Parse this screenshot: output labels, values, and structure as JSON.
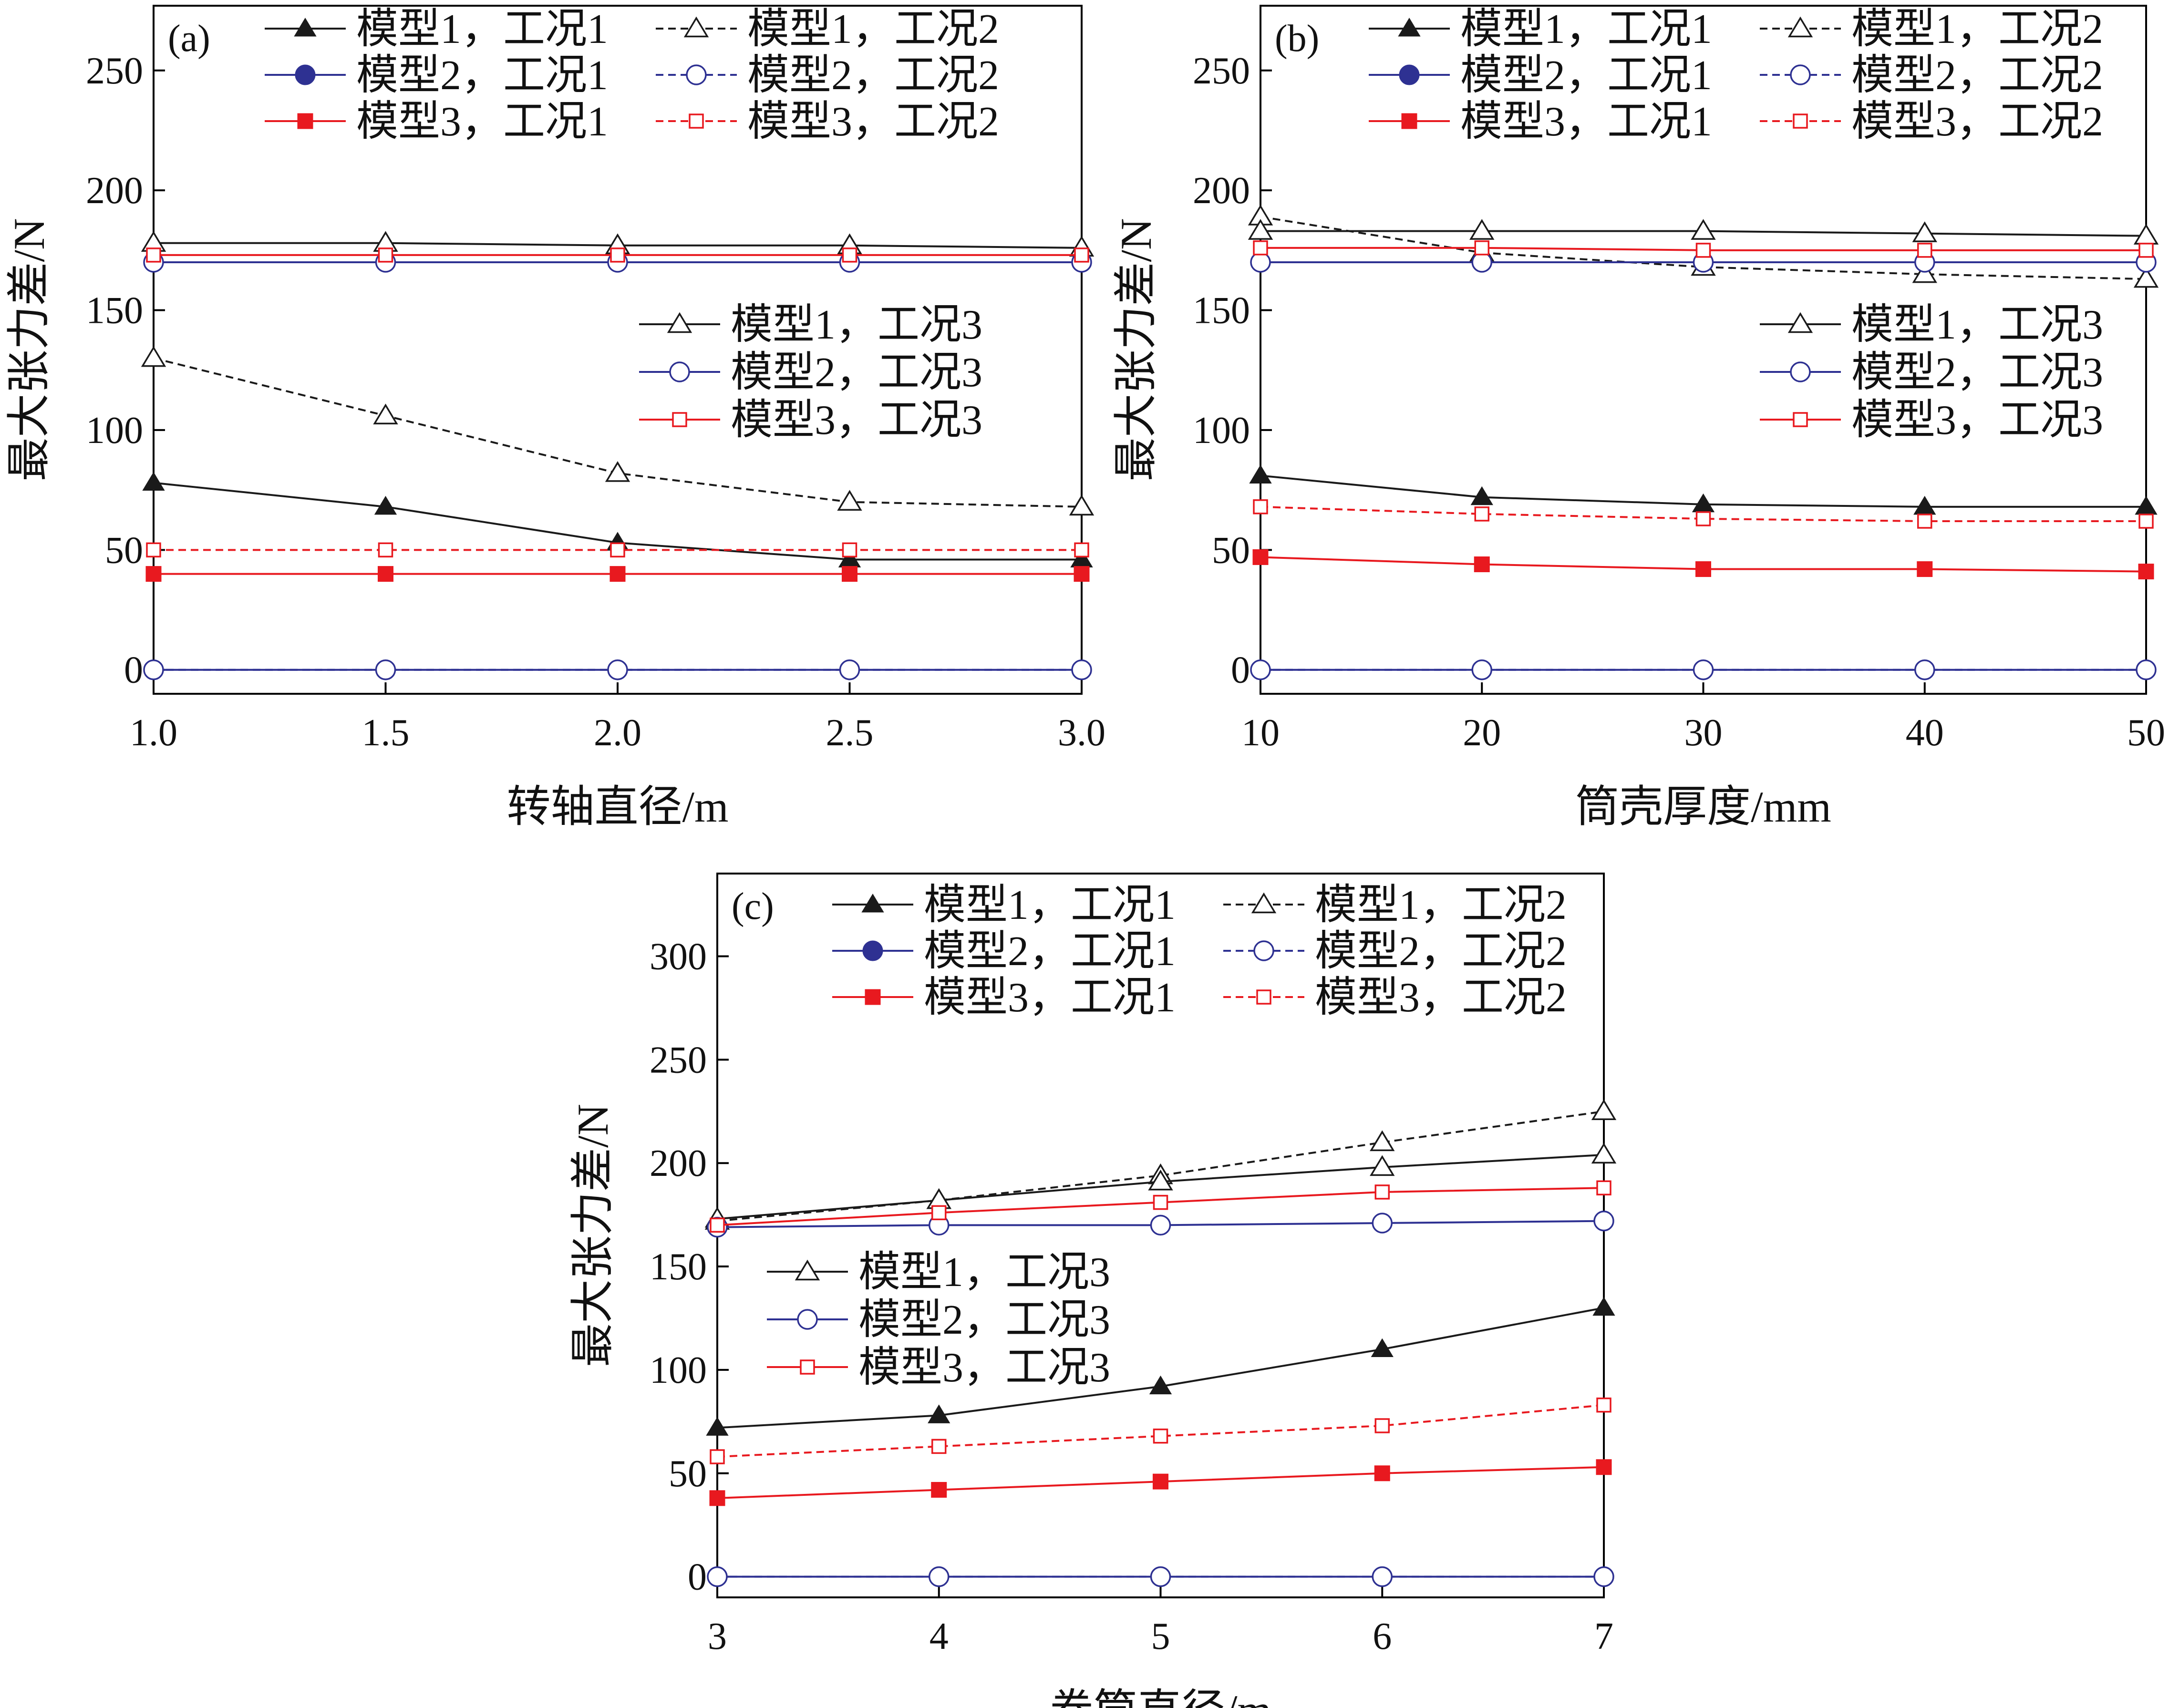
{
  "figure": {
    "panel_labels": [
      "(a)",
      "(b)",
      "(c)"
    ]
  },
  "colors": {
    "model1": "#1a1a1a",
    "model2": "#2e3192",
    "model3": "#e8191f",
    "frame": "#000000"
  },
  "legend_text": {
    "m1c1": "模型1，工况1",
    "m2c1": "模型2，工况1",
    "m3c1": "模型3，工况1",
    "m1c2": "模型1，工况2",
    "m2c2": "模型2，工况2",
    "m3c2": "模型3，工况2",
    "m1c3": "模型1，工况3",
    "m2c3": "模型2，工况3",
    "m3c3": "模型3，工况3"
  },
  "chart_data": [
    {
      "id": "a",
      "type": "line",
      "panel_label": "(a)",
      "xlabel": "转轴直径/m",
      "ylabel": "最大张力差/N",
      "x": [
        1.0,
        1.5,
        2.0,
        2.5,
        3.0
      ],
      "x_ticks": [
        "1.0",
        "1.5",
        "2.0",
        "2.5",
        "3.0"
      ],
      "y_ticks": [
        0,
        50,
        100,
        150,
        200,
        250
      ],
      "xlim": [
        1.0,
        3.0
      ],
      "ylim": [
        -10,
        277
      ],
      "series": [
        {
          "key": "m1c1",
          "name": "模型1，工况1",
          "values": [
            78,
            68,
            53,
            46,
            46
          ]
        },
        {
          "key": "m2c1",
          "name": "模型2，工况1",
          "values": [
            0,
            0,
            0,
            0,
            0
          ]
        },
        {
          "key": "m3c1",
          "name": "模型3，工况1",
          "values": [
            40,
            40,
            40,
            40,
            40
          ]
        },
        {
          "key": "m1c2",
          "name": "模型1，工况2",
          "values": [
            130,
            106,
            82,
            70,
            68
          ]
        },
        {
          "key": "m2c2",
          "name": "模型2，工况2",
          "values": [
            0,
            0,
            0,
            0,
            0
          ]
        },
        {
          "key": "m3c2",
          "name": "模型3，工况2",
          "values": [
            50,
            50,
            50,
            50,
            50
          ]
        },
        {
          "key": "m1c3",
          "name": "模型1，工况3",
          "values": [
            178,
            178,
            177,
            177,
            176
          ]
        },
        {
          "key": "m2c3",
          "name": "模型2，工况3",
          "values": [
            170,
            170,
            170,
            170,
            170
          ]
        },
        {
          "key": "m3c3",
          "name": "模型3，工况3",
          "values": [
            173,
            173,
            173,
            173,
            173
          ]
        }
      ]
    },
    {
      "id": "b",
      "type": "line",
      "panel_label": "(b)",
      "xlabel": "筒壳厚度/mm",
      "ylabel": "最大张力差/N",
      "x": [
        10,
        20,
        30,
        40,
        50
      ],
      "x_ticks": [
        "10",
        "20",
        "30",
        "40",
        "50"
      ],
      "y_ticks": [
        0,
        50,
        100,
        150,
        200,
        250
      ],
      "xlim": [
        10,
        50
      ],
      "ylim": [
        -10,
        277
      ],
      "series": [
        {
          "key": "m1c1",
          "name": "模型1，工况1",
          "values": [
            81,
            72,
            69,
            68,
            68
          ]
        },
        {
          "key": "m2c1",
          "name": "模型2，工况1",
          "values": [
            0,
            0,
            0,
            0,
            0
          ]
        },
        {
          "key": "m3c1",
          "name": "模型3，工况1",
          "values": [
            47,
            44,
            42,
            42,
            41
          ]
        },
        {
          "key": "m1c2",
          "name": "模型1，工况2",
          "values": [
            189,
            174,
            168,
            165,
            163
          ]
        },
        {
          "key": "m2c2",
          "name": "模型2，工况2",
          "values": [
            0,
            0,
            0,
            0,
            0
          ]
        },
        {
          "key": "m3c2",
          "name": "模型3，工况2",
          "values": [
            68,
            65,
            63,
            62,
            62
          ]
        },
        {
          "key": "m1c3",
          "name": "模型1，工况3",
          "values": [
            183,
            183,
            183,
            182,
            181
          ]
        },
        {
          "key": "m2c3",
          "name": "模型2，工况3",
          "values": [
            170,
            170,
            170,
            170,
            170
          ]
        },
        {
          "key": "m3c3",
          "name": "模型3，工况3",
          "values": [
            176,
            176,
            175,
            175,
            175
          ]
        }
      ]
    },
    {
      "id": "c",
      "type": "line",
      "panel_label": "(c)",
      "xlabel": "卷筒直径/m",
      "ylabel": "最大张力差/N",
      "x": [
        3,
        4,
        5,
        6,
        7
      ],
      "x_ticks": [
        "3",
        "4",
        "5",
        "6",
        "7"
      ],
      "y_ticks": [
        0,
        50,
        100,
        150,
        200,
        250,
        300
      ],
      "xlim": [
        3,
        7
      ],
      "ylim": [
        -10,
        340
      ],
      "series": [
        {
          "key": "m1c1",
          "name": "模型1，工况1",
          "values": [
            72,
            78,
            92,
            110,
            130
          ]
        },
        {
          "key": "m2c1",
          "name": "模型2，工况1",
          "values": [
            0,
            0,
            0,
            0,
            0
          ]
        },
        {
          "key": "m3c1",
          "name": "模型3，工况1",
          "values": [
            38,
            42,
            46,
            50,
            53
          ]
        },
        {
          "key": "m1c2",
          "name": "模型1，工况2",
          "values": [
            172,
            182,
            194,
            210,
            225
          ]
        },
        {
          "key": "m2c2",
          "name": "模型2，工况2",
          "values": [
            0,
            0,
            0,
            0,
            0
          ]
        },
        {
          "key": "m3c2",
          "name": "模型3，工况2",
          "values": [
            58,
            63,
            68,
            73,
            83
          ]
        },
        {
          "key": "m1c3",
          "name": "模型1，工况3",
          "values": [
            173,
            182,
            191,
            198,
            204
          ]
        },
        {
          "key": "m2c3",
          "name": "模型2，工况3",
          "values": [
            169,
            170,
            170,
            171,
            172
          ]
        },
        {
          "key": "m3c3",
          "name": "模型3，工况3",
          "values": [
            170,
            176,
            181,
            186,
            188
          ]
        }
      ]
    }
  ]
}
